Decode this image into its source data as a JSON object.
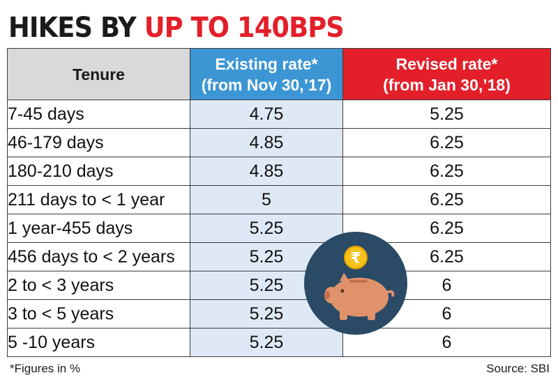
{
  "headline": {
    "part1": "HIKES BY",
    "part2": "UP TO 140BPS"
  },
  "table": {
    "headers": {
      "tenure": "Tenure",
      "existing_line1": "Existing rate*",
      "existing_line2": "(from Nov 30,’17)",
      "revised_line1": "Revised rate*",
      "revised_line2": "(from Jan 30,’18)"
    },
    "rows": [
      {
        "tenure": "7-45 days",
        "existing": "4.75",
        "revised": "5.25"
      },
      {
        "tenure": "46-179 days",
        "existing": "4.85",
        "revised": "6.25"
      },
      {
        "tenure": "180-210 days",
        "existing": "4.85",
        "revised": "6.25"
      },
      {
        "tenure": "211 days to < 1 year",
        "existing": "5",
        "revised": "6.25"
      },
      {
        "tenure": "1 year-455 days",
        "existing": "5.25",
        "revised": "6.25"
      },
      {
        "tenure": "456 days to < 2 years",
        "existing": "5.25",
        "revised": "6.25"
      },
      {
        "tenure": "2 to < 3 years",
        "existing": "5.25",
        "revised": "6"
      },
      {
        "tenure": "3 to < 5 years",
        "existing": "5.25",
        "revised": "6"
      },
      {
        "tenure": "5 -10 years",
        "existing": "5.25",
        "revised": "6"
      }
    ]
  },
  "footnote": "*Figures in %",
  "source": "Source: SBI",
  "illustration": {
    "icon": "piggy-bank-rupee-icon",
    "coin_symbol": "₹"
  },
  "colors": {
    "headline_red": "#e3202a",
    "existing_header": "#3d96d4",
    "revised_header": "#e3202a",
    "tenure_header": "#d9d9d9",
    "existing_cells": "#dfe9f6",
    "badge_circle": "#2a4a66",
    "piggy": "#e0926a",
    "coin": "#f7c21b"
  }
}
